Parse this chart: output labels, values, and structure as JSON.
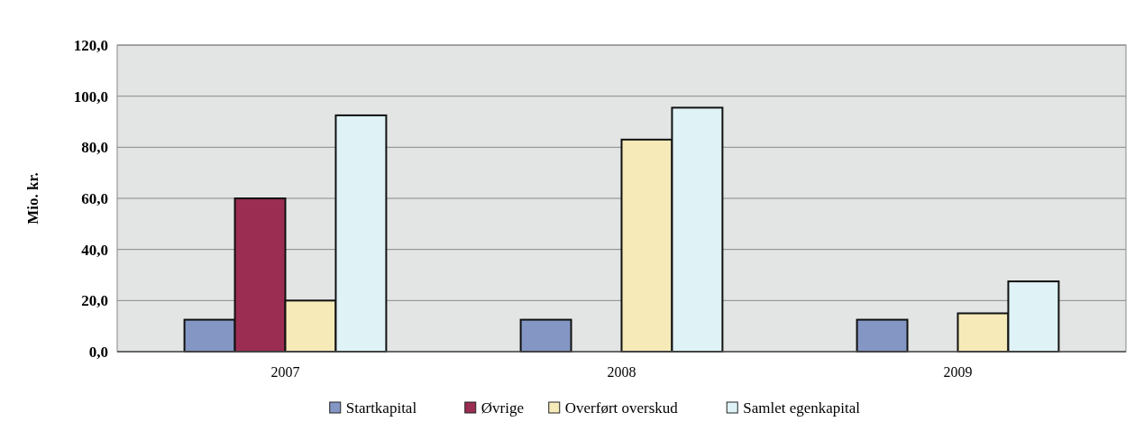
{
  "chart_data": {
    "type": "bar",
    "ylabel": "Mio. kr.",
    "categories": [
      "2007",
      "2008",
      "2009"
    ],
    "series": [
      {
        "name": "Startkapital",
        "color": "#8496c4",
        "values": [
          12.5,
          12.5,
          12.5
        ]
      },
      {
        "name": "Øvrige",
        "color": "#9b2d52",
        "values": [
          60,
          null,
          null
        ]
      },
      {
        "name": "Overført overskud",
        "color": "#f6ebb8",
        "values": [
          20,
          83,
          15
        ]
      },
      {
        "name": "Samlet egenkapital",
        "color": "#dff3f7",
        "values": [
          92.5,
          95.5,
          27.5
        ]
      }
    ],
    "ylim": [
      0,
      120
    ],
    "yticks": [
      {
        "value": 0,
        "label": "0,0"
      },
      {
        "value": 20,
        "label": "20,0"
      },
      {
        "value": 40,
        "label": "40,0"
      },
      {
        "value": 60,
        "label": "60,0"
      },
      {
        "value": 80,
        "label": "80,0"
      },
      {
        "value": 100,
        "label": "100,0"
      },
      {
        "value": 120,
        "label": "120,0"
      }
    ],
    "grid": "y",
    "legend": "bottom"
  }
}
